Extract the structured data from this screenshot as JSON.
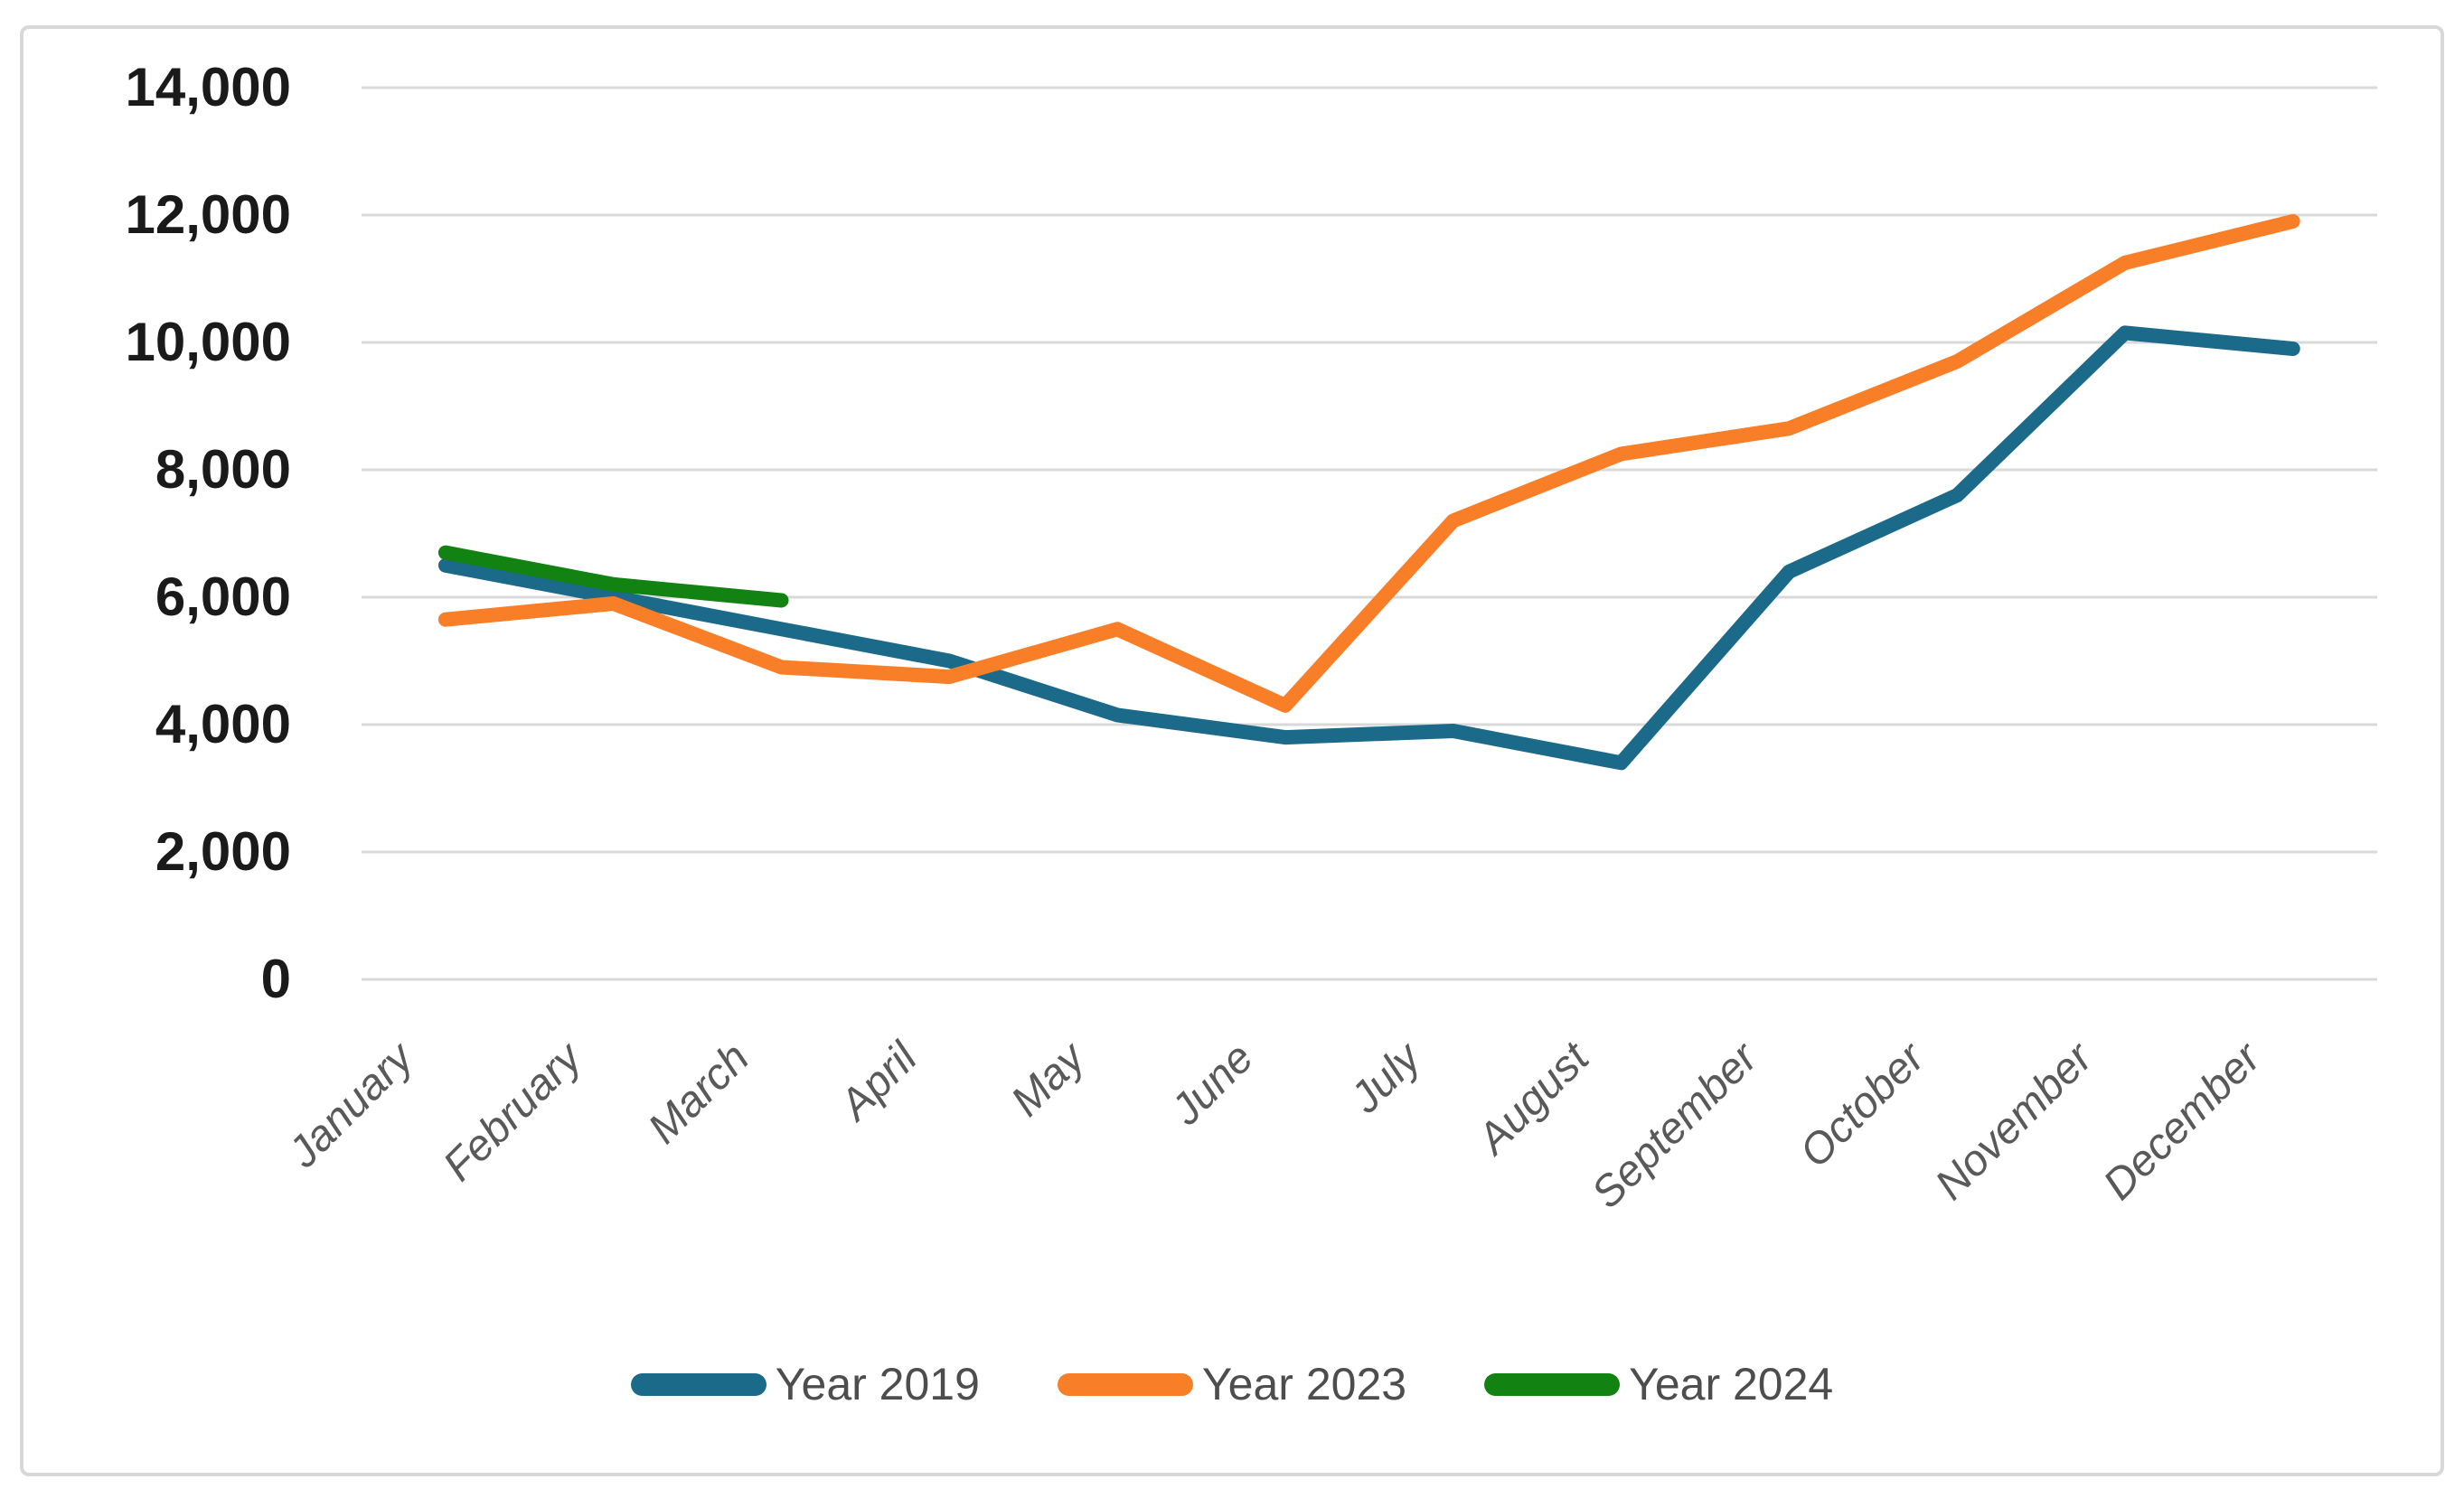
{
  "chart_data": {
    "type": "line",
    "title": "",
    "xlabel": "",
    "ylabel": "",
    "categories": [
      "January",
      "February",
      "March",
      "April",
      "May",
      "June",
      "July",
      "August",
      "September",
      "October",
      "November",
      "December"
    ],
    "series": [
      {
        "name": "Year 2019",
        "color": "#1B6A8A",
        "values": [
          6500,
          6000,
          5500,
          5000,
          4150,
          3800,
          3900,
          3400,
          6400,
          7600,
          10150,
          9900
        ]
      },
      {
        "name": "Year 2023",
        "color": "#F87E27",
        "values": [
          5650,
          5900,
          4900,
          4750,
          5500,
          4300,
          7200,
          8250,
          8650,
          9700,
          11250,
          11900
        ]
      },
      {
        "name": "Year 2024",
        "color": "#128212",
        "values": [
          6700,
          6200,
          5950,
          null,
          null,
          null,
          null,
          null,
          null,
          null,
          null,
          null
        ]
      }
    ],
    "ylim": [
      0,
      14000
    ],
    "ytick_interval": 2000,
    "ytick_labels": [
      "0",
      "2,000",
      "4,000",
      "6,000",
      "8,000",
      "10,000",
      "12,000",
      "14,000"
    ],
    "grid": "horizontal",
    "legend_position": "bottom",
    "legend_items": [
      "Year 2019",
      "Year 2023",
      "Year 2024"
    ]
  },
  "colors": {
    "background": "#FFFFFF",
    "card_border": "#D8D8D8",
    "gridline": "#D9D9D9",
    "ytick_text": "#1A1A1A",
    "xtick_text": "#595959",
    "legend_text": "#4D4D4D",
    "series_2019": "#1B6A8A",
    "series_2023": "#F87E27",
    "series_2024": "#128212"
  }
}
